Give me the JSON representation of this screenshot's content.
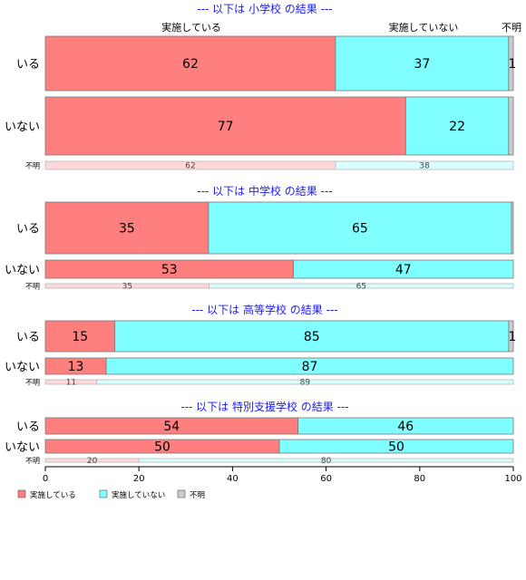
{
  "chart_data": {
    "type": "bar",
    "stacked": true,
    "orientation": "horizontal",
    "xlim": [
      0,
      100
    ],
    "x_ticks": [
      0,
      20,
      40,
      60,
      80,
      100
    ],
    "colors": {
      "implemented": "#ff7f7f",
      "not_implemented": "#7fffff",
      "unknown": "#cccccc",
      "title": "#1a1aff"
    },
    "column_labels": {
      "implemented": "実施している",
      "not_implemented": "実施していない",
      "unknown": "不明"
    },
    "legend": {
      "placement": "bottom-left",
      "items": [
        "実施している",
        "実施していない",
        "不明"
      ]
    },
    "panels": [
      {
        "title": "--- 以下は 小学校 の結果 ---",
        "show_column_labels": true,
        "groups": [
          {
            "label": "いる",
            "values": [
              62,
              37,
              1
            ],
            "labels": [
              "62",
              "37",
              "1"
            ],
            "size": "large"
          },
          {
            "label": "いない",
            "values": [
              77,
              22,
              1
            ],
            "labels": [
              "77",
              "22",
              ""
            ],
            "size": "large"
          },
          {
            "label": "不明",
            "values": [
              62,
              38,
              0
            ],
            "labels": [
              "62",
              "38",
              ""
            ],
            "size": "small"
          }
        ]
      },
      {
        "title": "--- 以下は 中学校 の結果 ---",
        "show_column_labels": false,
        "groups": [
          {
            "label": "いる",
            "values": [
              35,
              65,
              0.4
            ],
            "labels": [
              "35",
              "65",
              ""
            ],
            "size": "large"
          },
          {
            "label": "いない",
            "values": [
              53,
              47,
              0
            ],
            "labels": [
              "53",
              "47",
              ""
            ],
            "size": "medium"
          },
          {
            "label": "不明",
            "values": [
              35,
              65,
              0
            ],
            "labels": [
              "35",
              "65",
              ""
            ],
            "size": "small"
          }
        ]
      },
      {
        "title": "--- 以下は 高等学校 の結果 ---",
        "show_column_labels": false,
        "groups": [
          {
            "label": "いる",
            "values": [
              15,
              85,
              1
            ],
            "labels": [
              "15",
              "85",
              "1"
            ],
            "size": "large2"
          },
          {
            "label": "いない",
            "values": [
              13,
              87,
              0
            ],
            "labels": [
              "13",
              "87",
              ""
            ],
            "size": "medium"
          },
          {
            "label": "不明",
            "values": [
              11,
              89,
              0
            ],
            "labels": [
              "11",
              "89",
              ""
            ],
            "size": "small"
          }
        ]
      },
      {
        "title": "--- 以下は 特別支援学校 の結果 ---",
        "show_column_labels": false,
        "groups": [
          {
            "label": "いる",
            "values": [
              54,
              46,
              0
            ],
            "labels": [
              "54",
              "46",
              ""
            ],
            "size": "medium"
          },
          {
            "label": "いない",
            "values": [
              50,
              50,
              0
            ],
            "labels": [
              "50",
              "50",
              ""
            ],
            "size": "medium"
          },
          {
            "label": "不明",
            "values": [
              20,
              80,
              0
            ],
            "labels": [
              "20",
              "80",
              ""
            ],
            "size": "small"
          }
        ]
      }
    ]
  }
}
